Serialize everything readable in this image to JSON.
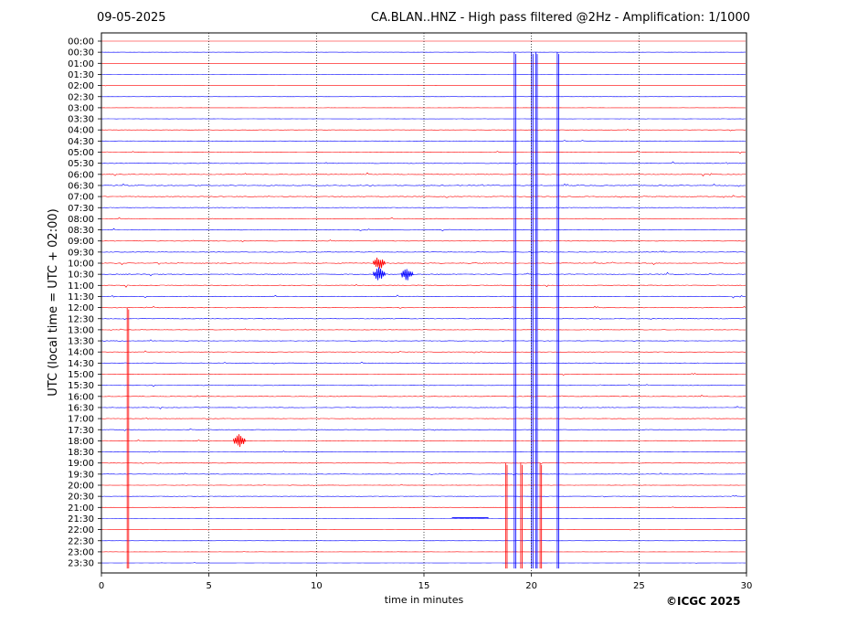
{
  "header": {
    "date": "09-05-2025",
    "title": "CA.BLAN..HNZ - High pass filtered @2Hz - Amplification: 1/1000"
  },
  "footer": {
    "credit": "©ICGC 2025"
  },
  "chart_data": {
    "type": "line",
    "title": "CA.BLAN..HNZ - High pass filtered @2Hz - Amplification: 1/1000",
    "xlabel": "time in minutes",
    "ylabel": "UTC (local time = UTC + 02:00)",
    "xlim": [
      0,
      30
    ],
    "x_ticks": [
      0,
      5,
      10,
      15,
      20,
      25,
      30
    ],
    "x_gridlines": [
      5,
      10,
      15,
      20,
      25
    ],
    "grid": "vertical dotted",
    "row_labels": [
      "00:00",
      "00:30",
      "01:00",
      "01:30",
      "02:00",
      "02:30",
      "03:00",
      "03:30",
      "04:00",
      "04:30",
      "05:00",
      "05:30",
      "06:00",
      "06:30",
      "07:00",
      "07:30",
      "08:00",
      "08:30",
      "09:00",
      "09:30",
      "10:00",
      "10:30",
      "11:00",
      "11:30",
      "12:00",
      "12:30",
      "13:00",
      "13:30",
      "14:00",
      "14:30",
      "15:00",
      "15:30",
      "16:00",
      "16:30",
      "17:00",
      "17:30",
      "18:00",
      "18:30",
      "19:00",
      "19:30",
      "20:00",
      "20:30",
      "21:00",
      "21:30",
      "22:00",
      "22:30",
      "23:00",
      "23:30"
    ],
    "trace_colors": [
      "#ff0000",
      "#0000ff"
    ],
    "noise_level": [
      0.05,
      0.08,
      0.05,
      0.08,
      0.1,
      0.1,
      0.12,
      0.2,
      0.25,
      0.3,
      0.4,
      0.5,
      0.55,
      0.55,
      0.55,
      0.5,
      0.45,
      0.4,
      0.4,
      0.45,
      0.5,
      0.55,
      0.55,
      0.5,
      0.45,
      0.4,
      0.4,
      0.4,
      0.4,
      0.4,
      0.4,
      0.4,
      0.4,
      0.4,
      0.35,
      0.35,
      0.35,
      0.35,
      0.35,
      0.35,
      0.3,
      0.3,
      0.2,
      0.1,
      0.15,
      0.15,
      0.15,
      0.15
    ],
    "events": [
      {
        "row": 1,
        "minute": 19.2,
        "type": "spike"
      },
      {
        "row": 1,
        "minute": 20.0,
        "type": "spike"
      },
      {
        "row": 1,
        "minute": 20.2,
        "type": "spike"
      },
      {
        "row": 1,
        "minute": 21.2,
        "type": "spike"
      },
      {
        "row": 20,
        "minute": 12.9,
        "type": "burst"
      },
      {
        "row": 21,
        "minute": 12.9,
        "type": "burst"
      },
      {
        "row": 21,
        "minute": 14.2,
        "type": "burst"
      },
      {
        "row": 24,
        "minute": 1.2,
        "type": "spike"
      },
      {
        "row": 36,
        "minute": 6.4,
        "type": "burst"
      },
      {
        "row": 38,
        "minute": 18.8,
        "type": "spike"
      },
      {
        "row": 38,
        "minute": 19.5,
        "type": "spike"
      },
      {
        "row": 38,
        "minute": 20.4,
        "type": "spike"
      },
      {
        "row": 43,
        "minute": 16.3,
        "type": "step"
      }
    ]
  }
}
